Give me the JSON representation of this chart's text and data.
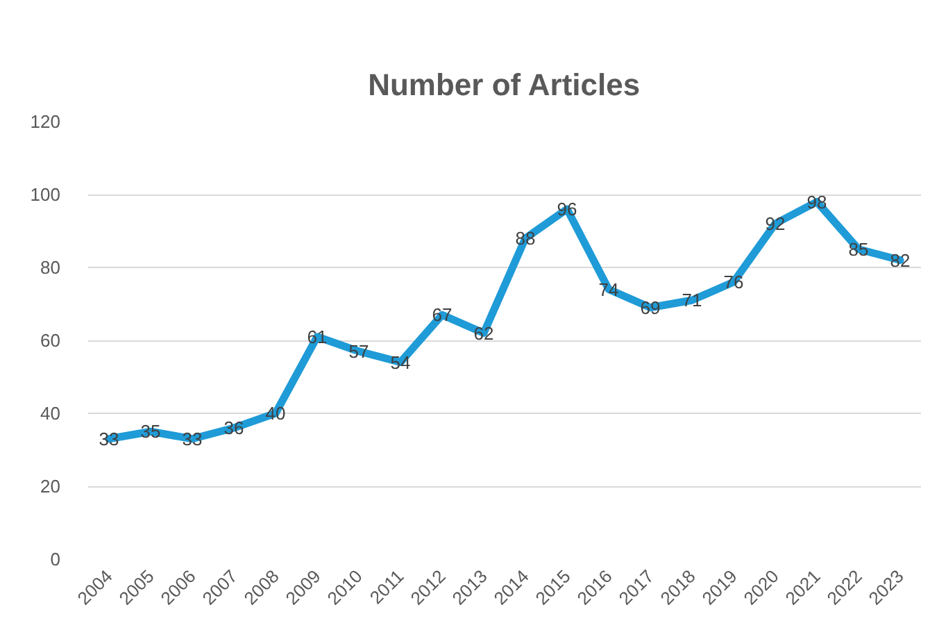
{
  "chart_data": {
    "type": "line",
    "title": "Number of Articles",
    "categories": [
      "2004",
      "2005",
      "2006",
      "2007",
      "2008",
      "2009",
      "2010",
      "2011",
      "2012",
      "2013",
      "2014",
      "2015",
      "2016",
      "2017",
      "2018",
      "2019",
      "2020",
      "2021",
      "2022",
      "2023"
    ],
    "values": [
      33,
      35,
      33,
      36,
      40,
      61,
      57,
      54,
      67,
      62,
      88,
      96,
      74,
      69,
      71,
      76,
      92,
      98,
      85,
      82
    ],
    "color": "#1f9bd7",
    "ylim": [
      0,
      120
    ],
    "yticks": [
      0,
      20,
      40,
      60,
      80,
      100,
      120
    ],
    "grid": "y",
    "data_labels": true
  }
}
